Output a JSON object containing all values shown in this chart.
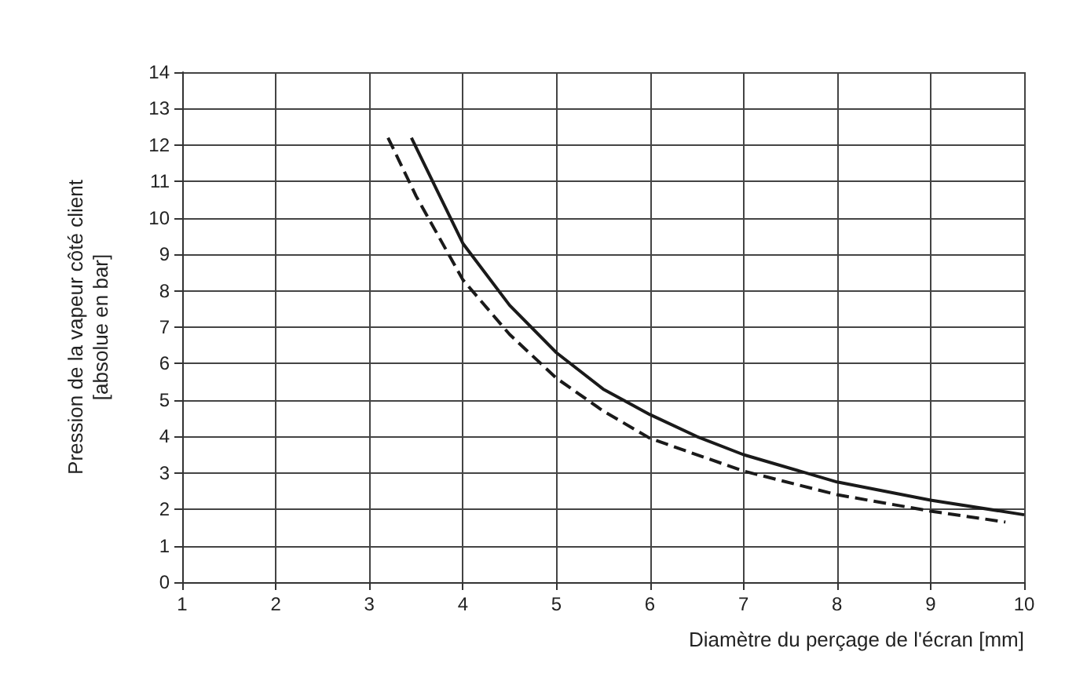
{
  "chart_data": {
    "type": "line",
    "xlabel": "Diamètre du perçage de l'écran [mm]",
    "ylabel": "Pression de la vapeur côté client\n[absolue en bar]",
    "xlim": [
      1,
      10
    ],
    "xticks": [
      1,
      2,
      3,
      4,
      5,
      6,
      7,
      8,
      9,
      10
    ],
    "ylim": [
      0,
      14
    ],
    "yticks": [
      0,
      1,
      2,
      3,
      4,
      5,
      6,
      7,
      8,
      9,
      10,
      11,
      12,
      13,
      14
    ],
    "grid": true,
    "marker": "none",
    "series": [
      {
        "color": "#1a1a1a",
        "line_style": "solid",
        "x": [
          3.45,
          4,
          4.5,
          5,
          5.5,
          6,
          6.5,
          7,
          8,
          9,
          10
        ],
        "values": [
          12.2,
          9.3,
          7.6,
          6.3,
          5.3,
          4.6,
          4.0,
          3.5,
          2.75,
          2.25,
          1.85
        ]
      },
      {
        "color": "#1a1a1a",
        "line_style": "dashed",
        "x": [
          3.2,
          3.5,
          4,
          4.5,
          5,
          5.5,
          6,
          7,
          8,
          9,
          9.8
        ],
        "values": [
          12.2,
          10.6,
          8.3,
          6.8,
          5.6,
          4.7,
          3.95,
          3.05,
          2.4,
          1.95,
          1.65
        ]
      }
    ]
  }
}
